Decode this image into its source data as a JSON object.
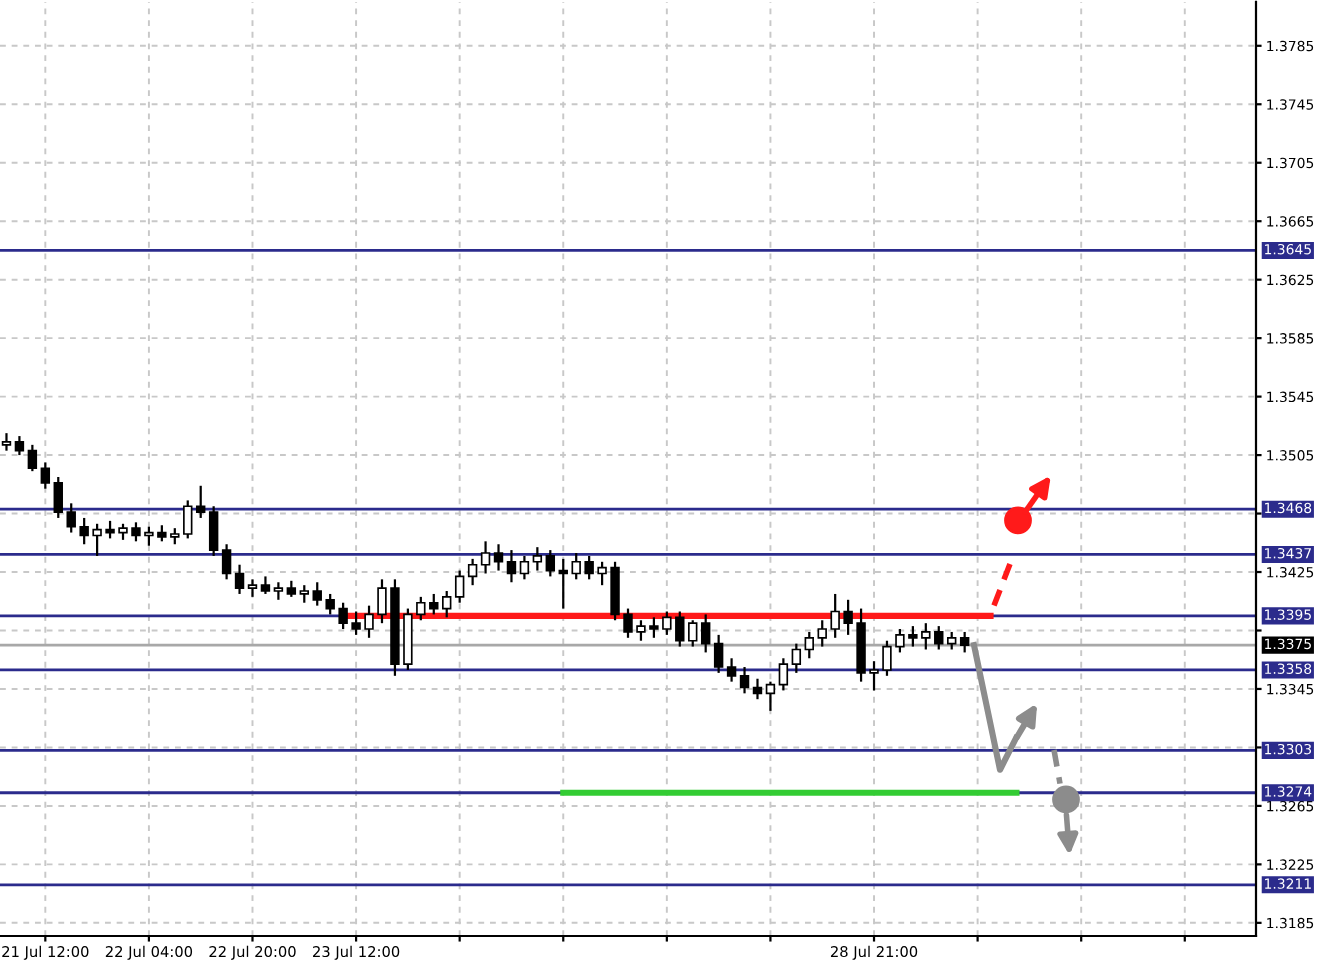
{
  "chart_data": {
    "type": "candlestick",
    "categories": [
      null,
      null,
      null,
      "21 Jul 12:00",
      null,
      null,
      null,
      null,
      null,
      null,
      null,
      "22 Jul 04:00",
      null,
      null,
      null,
      null,
      null,
      null,
      null,
      "22 Jul 20:00",
      null,
      null,
      null,
      null,
      null,
      null,
      null,
      "23 Jul 12:00",
      null,
      null,
      null,
      null,
      null,
      null,
      null,
      null,
      null,
      null,
      null,
      null,
      null,
      null,
      null,
      null,
      null,
      null,
      null,
      null,
      null,
      null,
      null,
      null,
      null,
      null,
      null,
      null,
      null,
      null,
      null,
      null,
      null,
      null,
      null,
      null,
      null,
      null,
      null,
      "28 Jul 21:00",
      null,
      null,
      null,
      null,
      null,
      null,
      null,
      null,
      null,
      null,
      null,
      null,
      null,
      null,
      null,
      null,
      null,
      null,
      null,
      null,
      null,
      null,
      null,
      null,
      null,
      null,
      null,
      null,
      null
    ],
    "ohlc": [
      [
        1.3512,
        1.352,
        1.3508,
        1.3514
      ],
      [
        1.3514,
        1.3518,
        1.3505,
        1.3508
      ],
      [
        1.3508,
        1.3512,
        1.3494,
        1.3496
      ],
      [
        1.3496,
        1.35,
        1.3482,
        1.3486
      ],
      [
        1.3486,
        1.349,
        1.3462,
        1.3466
      ],
      [
        1.3466,
        1.3472,
        1.3452,
        1.3456
      ],
      [
        1.3456,
        1.3462,
        1.3444,
        1.345
      ],
      [
        1.345,
        1.3458,
        1.3436,
        1.3454
      ],
      [
        1.3454,
        1.346,
        1.3448,
        1.3452
      ],
      [
        1.3452,
        1.3458,
        1.3447,
        1.3455
      ],
      [
        1.3455,
        1.3459,
        1.3446,
        1.345
      ],
      [
        1.345,
        1.3456,
        1.3443,
        1.3452
      ],
      [
        1.3452,
        1.3457,
        1.3446,
        1.3449
      ],
      [
        1.3449,
        1.3455,
        1.3444,
        1.3451
      ],
      [
        1.3451,
        1.3474,
        1.3448,
        1.347
      ],
      [
        1.347,
        1.3484,
        1.3462,
        1.3466
      ],
      [
        1.3466,
        1.347,
        1.3436,
        1.344
      ],
      [
        1.344,
        1.3444,
        1.342,
        1.3424
      ],
      [
        1.3424,
        1.343,
        1.341,
        1.3414
      ],
      [
        1.3414,
        1.342,
        1.3408,
        1.3416
      ],
      [
        1.3416,
        1.3422,
        1.341,
        1.3412
      ],
      [
        1.3412,
        1.3418,
        1.3406,
        1.3414
      ],
      [
        1.3414,
        1.3419,
        1.3408,
        1.341
      ],
      [
        1.341,
        1.3416,
        1.3404,
        1.3412
      ],
      [
        1.3412,
        1.3418,
        1.3402,
        1.3406
      ],
      [
        1.3406,
        1.341,
        1.3396,
        1.34
      ],
      [
        1.34,
        1.3404,
        1.3386,
        1.339
      ],
      [
        1.339,
        1.3398,
        1.3382,
        1.3386
      ],
      [
        1.3386,
        1.3402,
        1.338,
        1.3396
      ],
      [
        1.3396,
        1.342,
        1.339,
        1.3414
      ],
      [
        1.3414,
        1.342,
        1.3354,
        1.3362
      ],
      [
        1.3362,
        1.34,
        1.3358,
        1.3396
      ],
      [
        1.3396,
        1.3408,
        1.3392,
        1.3404
      ],
      [
        1.3404,
        1.341,
        1.3396,
        1.34
      ],
      [
        1.34,
        1.3412,
        1.3394,
        1.3408
      ],
      [
        1.3408,
        1.3426,
        1.3404,
        1.3422
      ],
      [
        1.3422,
        1.3434,
        1.3416,
        1.343
      ],
      [
        1.343,
        1.3446,
        1.3424,
        1.3438
      ],
      [
        1.3438,
        1.3444,
        1.3426,
        1.3432
      ],
      [
        1.3432,
        1.344,
        1.3418,
        1.3424
      ],
      [
        1.3424,
        1.3436,
        1.342,
        1.3432
      ],
      [
        1.3432,
        1.3442,
        1.3426,
        1.3436
      ],
      [
        1.3436,
        1.344,
        1.3422,
        1.3426
      ],
      [
        1.3426,
        1.3434,
        1.34,
        1.3424
      ],
      [
        1.3424,
        1.3438,
        1.342,
        1.3432
      ],
      [
        1.3432,
        1.3436,
        1.342,
        1.3424
      ],
      [
        1.3424,
        1.3432,
        1.3416,
        1.3428
      ],
      [
        1.3428,
        1.3432,
        1.3392,
        1.3396
      ],
      [
        1.3396,
        1.34,
        1.338,
        1.3384
      ],
      [
        1.3384,
        1.3392,
        1.3378,
        1.3388
      ],
      [
        1.3388,
        1.3394,
        1.338,
        1.3386
      ],
      [
        1.3386,
        1.3398,
        1.3382,
        1.3394
      ],
      [
        1.3394,
        1.3398,
        1.3374,
        1.3378
      ],
      [
        1.3378,
        1.3392,
        1.3374,
        1.339
      ],
      [
        1.339,
        1.3396,
        1.337,
        1.3376
      ],
      [
        1.3376,
        1.3382,
        1.3356,
        1.336
      ],
      [
        1.336,
        1.3366,
        1.335,
        1.3354
      ],
      [
        1.3354,
        1.336,
        1.3342,
        1.3346
      ],
      [
        1.3346,
        1.3352,
        1.3338,
        1.3342
      ],
      [
        1.3342,
        1.335,
        1.333,
        1.3348
      ],
      [
        1.3348,
        1.3366,
        1.3344,
        1.3362
      ],
      [
        1.3362,
        1.3376,
        1.3356,
        1.3372
      ],
      [
        1.3372,
        1.3384,
        1.3366,
        1.338
      ],
      [
        1.338,
        1.3392,
        1.3374,
        1.3386
      ],
      [
        1.3386,
        1.341,
        1.338,
        1.3398
      ],
      [
        1.3398,
        1.3406,
        1.3382,
        1.339
      ],
      [
        1.339,
        1.34,
        1.335,
        1.3356
      ],
      [
        1.3356,
        1.3364,
        1.3344,
        1.3358
      ],
      [
        1.3358,
        1.3378,
        1.3354,
        1.3374
      ],
      [
        1.3374,
        1.3386,
        1.337,
        1.3382
      ],
      [
        1.3382,
        1.3388,
        1.3374,
        1.338
      ],
      [
        1.338,
        1.339,
        1.3372,
        1.3384
      ],
      [
        1.3384,
        1.3388,
        1.3372,
        1.3376
      ],
      [
        1.3376,
        1.3384,
        1.3372,
        1.338
      ],
      [
        1.338,
        1.3384,
        1.337,
        1.3375
      ],
      null,
      null,
      null,
      null,
      null,
      null,
      null,
      null,
      null,
      null,
      null,
      null,
      null,
      null,
      null,
      null,
      null,
      null,
      null,
      null,
      null,
      null
    ],
    "series": [
      {
        "type": "line",
        "color": "#ff1a1a",
        "values": [
          null,
          null,
          null,
          null,
          null,
          null,
          null,
          null,
          null,
          null,
          null,
          null,
          null,
          null,
          null,
          null,
          null,
          null,
          null,
          null,
          null,
          null,
          null,
          null,
          null,
          null,
          1.3395,
          1.3395,
          1.3395,
          1.3395,
          1.3395,
          1.3395,
          1.3395,
          1.3395,
          1.3395,
          1.3395,
          1.3395,
          1.3395,
          1.3395,
          1.3395,
          1.3395,
          1.3395,
          1.3395,
          1.3395,
          1.3395,
          1.3395,
          1.3395,
          1.3395,
          1.3395,
          1.3395,
          1.3395,
          1.3395,
          1.3395,
          1.3395,
          1.3395,
          1.3395,
          1.3395,
          1.3395,
          1.3395,
          1.3395,
          1.3395,
          1.3395,
          1.3395,
          1.3395,
          1.3395,
          1.3395,
          1.3395,
          1.3395,
          1.3395,
          1.3395,
          1.3395,
          1.3395,
          1.3395,
          1.3395,
          1.3395,
          1.3395,
          1.3395,
          null,
          null,
          null,
          null,
          null,
          null,
          null,
          null,
          null,
          null,
          null,
          null,
          null,
          null,
          null,
          null,
          null,
          null,
          null,
          null
        ]
      },
      {
        "type": "line",
        "color": "#33cc33",
        "values": [
          null,
          null,
          null,
          null,
          null,
          null,
          null,
          null,
          null,
          null,
          null,
          null,
          null,
          null,
          null,
          null,
          null,
          null,
          null,
          null,
          null,
          null,
          null,
          null,
          null,
          null,
          null,
          null,
          null,
          null,
          null,
          null,
          null,
          null,
          null,
          null,
          null,
          null,
          null,
          null,
          null,
          null,
          null,
          1.3274,
          1.3274,
          1.3274,
          1.3274,
          1.3274,
          1.3274,
          1.3274,
          1.3274,
          1.3274,
          1.3274,
          1.3274,
          1.3274,
          1.3274,
          1.3274,
          1.3274,
          1.3274,
          1.3274,
          1.3274,
          1.3274,
          1.3274,
          1.3274,
          1.3274,
          1.3274,
          1.3274,
          1.3274,
          1.3274,
          1.3274,
          1.3274,
          1.3274,
          1.3274,
          1.3274,
          1.3274,
          1.3274,
          1.3274,
          1.3274,
          1.3274,
          null,
          null,
          null,
          null,
          null,
          null,
          null,
          null,
          null,
          null,
          null,
          null,
          null,
          null,
          null,
          null,
          null,
          null
        ]
      }
    ],
    "ref_lines": [
      {
        "axis": "y",
        "value": 1.3645,
        "label": "1.3645",
        "color": "#2b2b8c"
      },
      {
        "axis": "y",
        "value": 1.3468,
        "label": "1.3468",
        "color": "#2b2b8c"
      },
      {
        "axis": "y",
        "value": 1.3437,
        "label": "1.3437",
        "color": "#2b2b8c"
      },
      {
        "axis": "y",
        "value": 1.3395,
        "label": "1.3395",
        "color": "#2b2b8c"
      },
      {
        "axis": "y",
        "value": 1.3375,
        "label": "1.3375",
        "color": "#a8a8a8"
      },
      {
        "axis": "y",
        "value": 1.3358,
        "label": "1.3358",
        "color": "#2b2b8c"
      },
      {
        "axis": "y",
        "value": 1.3303,
        "label": "1.3303",
        "color": "#2b2b8c"
      },
      {
        "axis": "y",
        "value": 1.3274,
        "label": "1.3274",
        "color": "#2b2b8c"
      },
      {
        "axis": "y",
        "value": 1.3211,
        "label": "1.3211",
        "color": "#2b2b8c"
      }
    ],
    "ylim": [
      1.3176,
      1.3815
    ],
    "yticks": [
      1.3785,
      1.3745,
      1.3705,
      1.3665,
      1.3625,
      1.3585,
      1.3545,
      1.3505,
      {
        "value": 1.3465,
        "label": null
      },
      1.3425,
      {
        "value": 1.3385,
        "label": null
      },
      1.3345,
      {
        "value": 1.3305,
        "label": null
      },
      1.3265,
      1.3225,
      1.3185
    ],
    "grid": true
  }
}
